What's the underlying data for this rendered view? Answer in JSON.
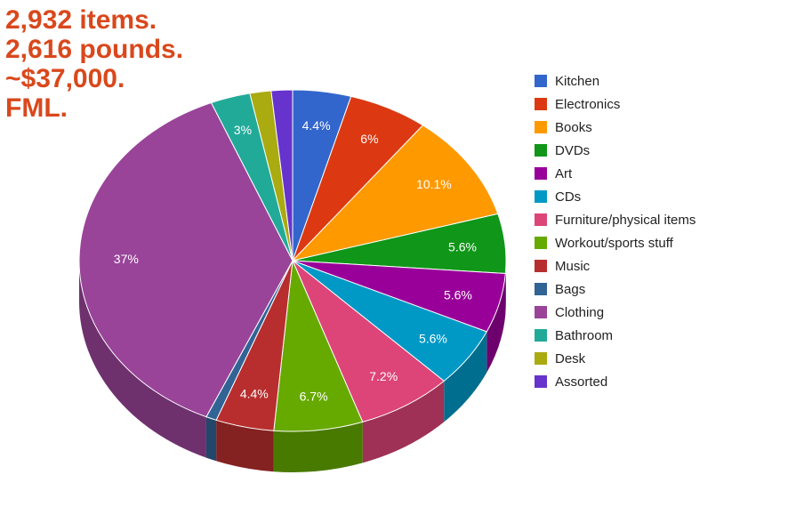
{
  "headline": [
    "2,932 items.",
    "2,616 pounds.",
    "~$37,000.",
    "FML."
  ],
  "colors": {
    "headline": "#d9481c"
  },
  "chart_data": {
    "type": "pie",
    "style": "3d",
    "title": "",
    "legend_position": "right",
    "slices": [
      {
        "label": "Kitchen",
        "value": 4.4,
        "display": "4.4%",
        "color": "#3366cc"
      },
      {
        "label": "Electronics",
        "value": 6.0,
        "display": "6%",
        "color": "#dc3912"
      },
      {
        "label": "Books",
        "value": 10.1,
        "display": "10.1%",
        "color": "#ff9900"
      },
      {
        "label": "DVDs",
        "value": 5.6,
        "display": "5.6%",
        "color": "#109618"
      },
      {
        "label": "Art",
        "value": 5.6,
        "display": "5.6%",
        "color": "#990099"
      },
      {
        "label": "CDs",
        "value": 5.6,
        "display": "5.6%",
        "color": "#0099c6"
      },
      {
        "label": "Furniture/physical items",
        "value": 7.2,
        "display": "7.2%",
        "color": "#dd4477"
      },
      {
        "label": "Workout/sports stuff",
        "value": 6.7,
        "display": "6.7%",
        "color": "#66aa00"
      },
      {
        "label": "Music",
        "value": 4.4,
        "display": "4.4%",
        "color": "#b82e2e"
      },
      {
        "label": "Bags",
        "value": 0.8,
        "display": "",
        "color": "#316395"
      },
      {
        "label": "Clothing",
        "value": 37.0,
        "display": "37%",
        "color": "#994499"
      },
      {
        "label": "Bathroom",
        "value": 3.0,
        "display": "3%",
        "color": "#22aa99"
      },
      {
        "label": "Desk",
        "value": 1.6,
        "display": "",
        "color": "#aaaa11"
      },
      {
        "label": "Assorted",
        "value": 1.6,
        "display": "",
        "color": "#6633cc"
      }
    ]
  }
}
